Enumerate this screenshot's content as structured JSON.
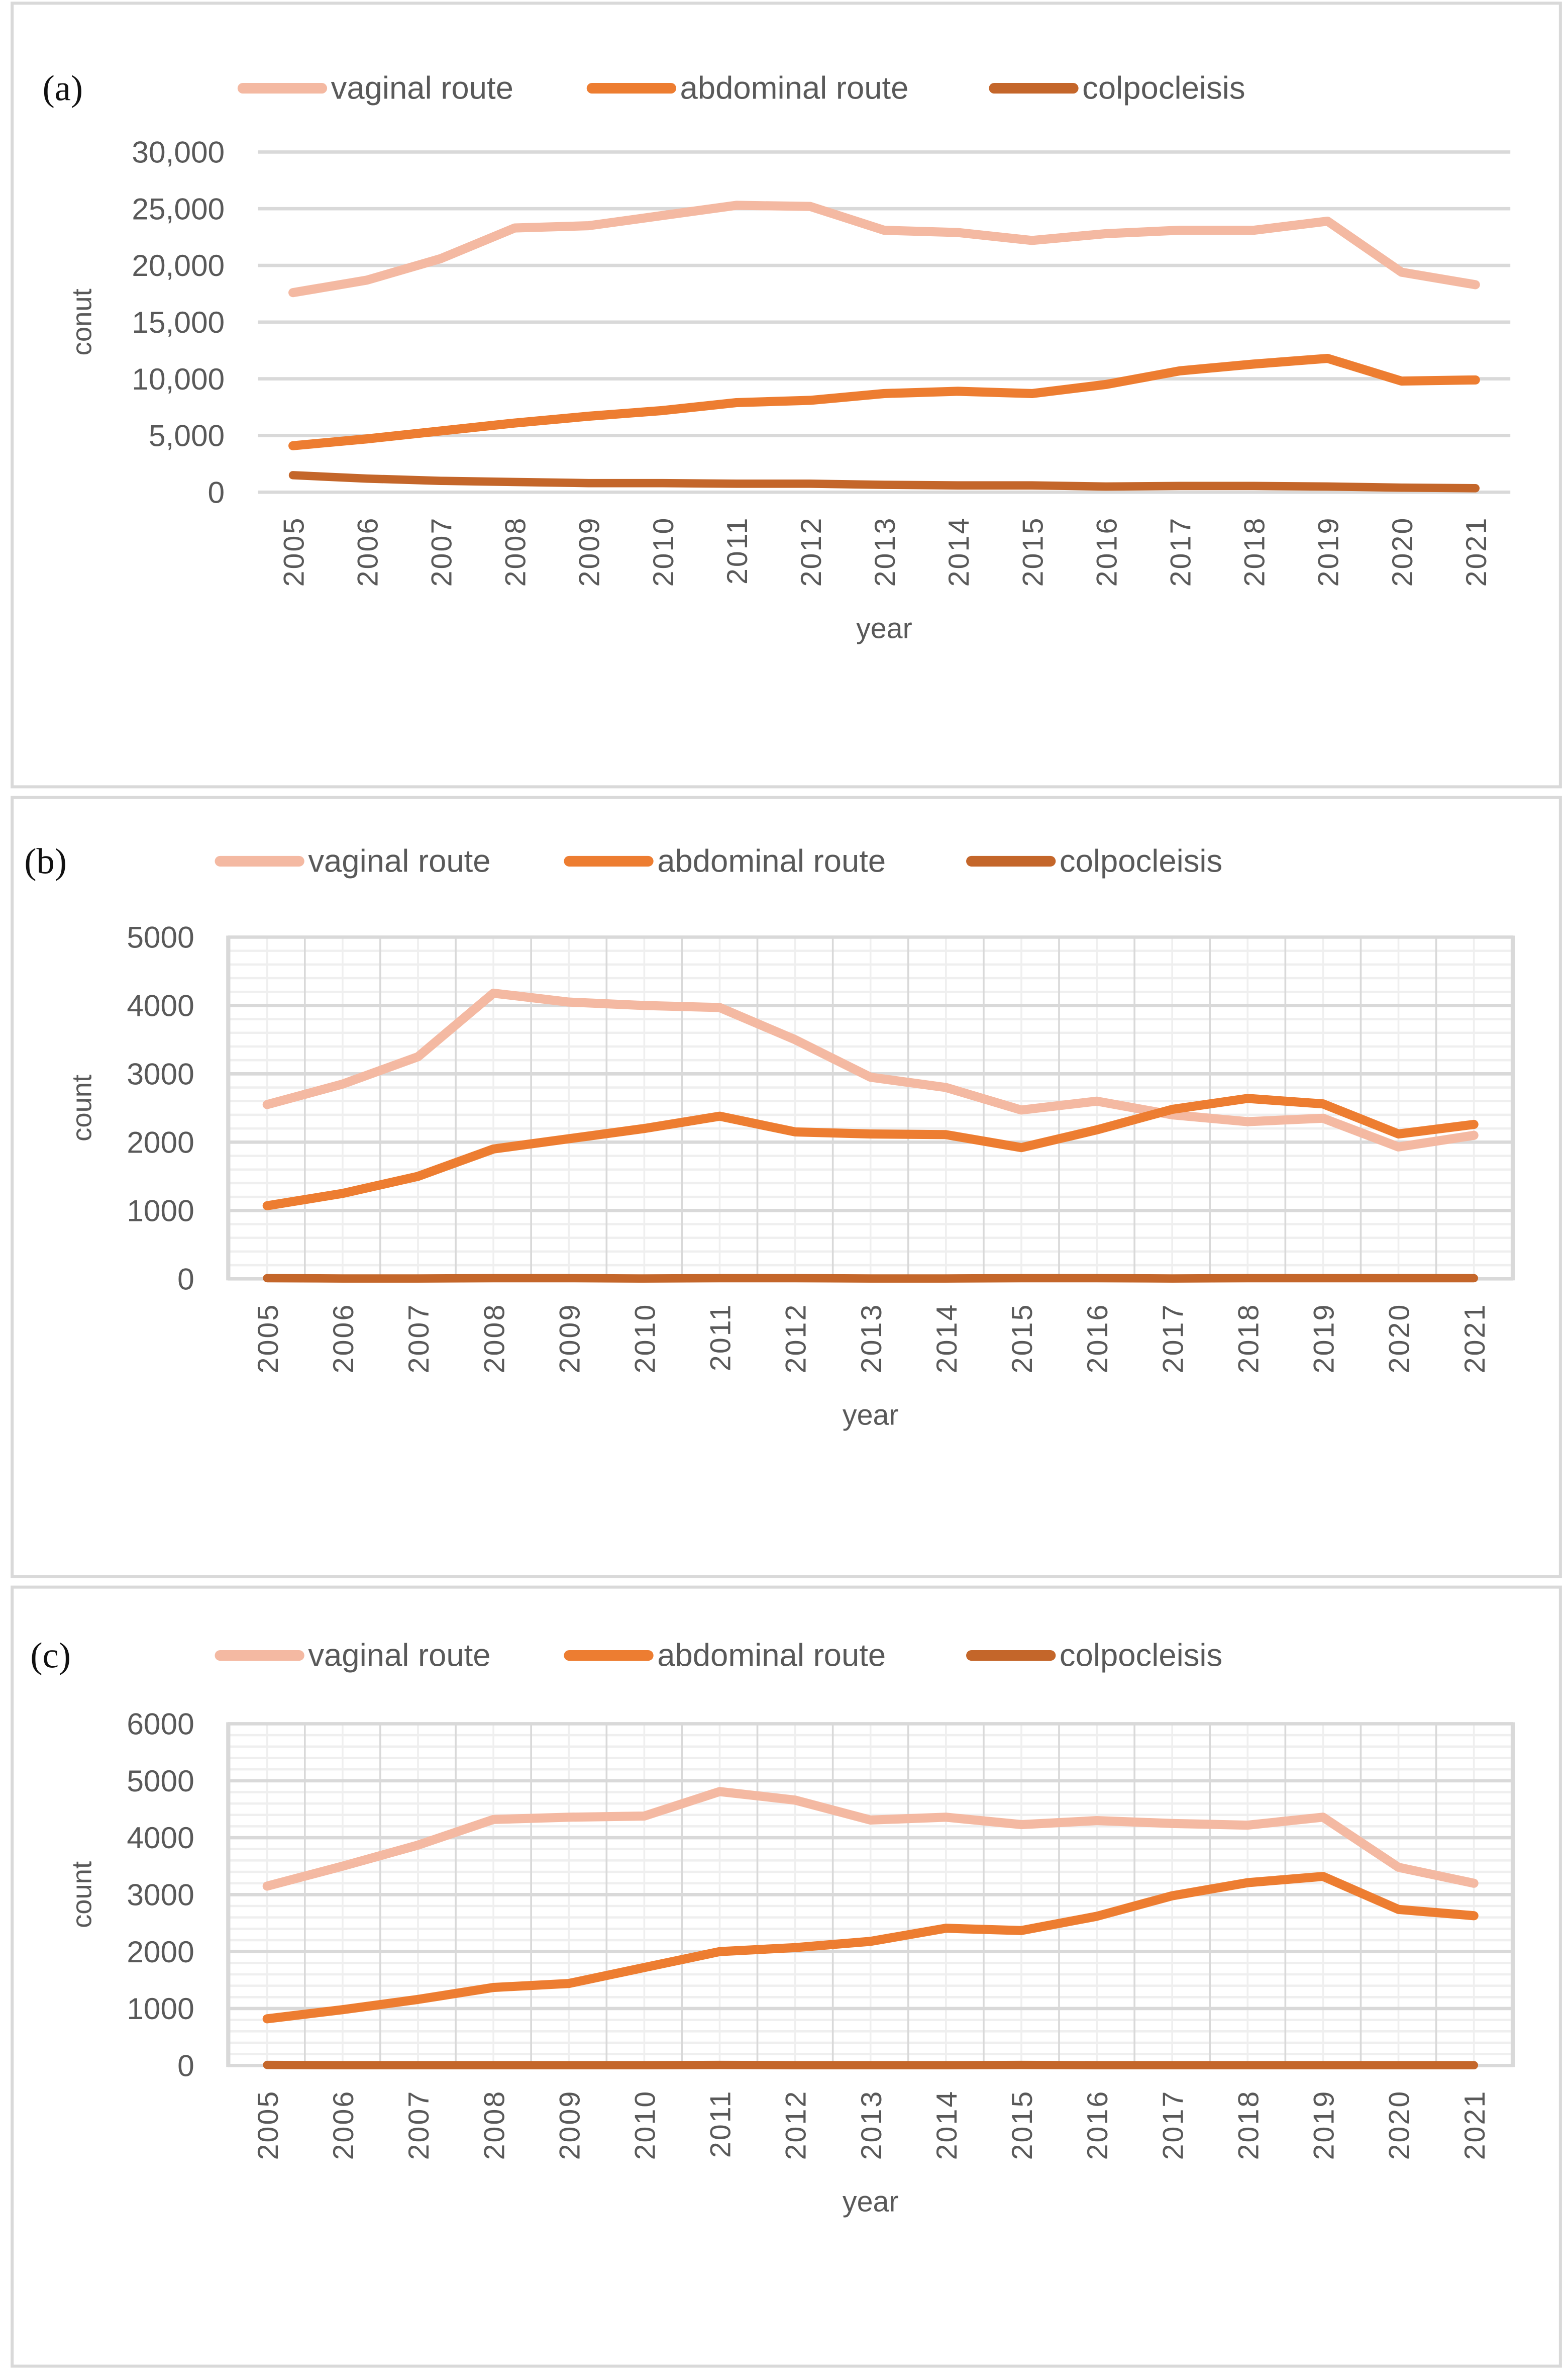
{
  "colors": {
    "vaginal": "#F4B9A2",
    "abdominal": "#ED7D31",
    "colpocleisis": "#C4662A",
    "grid": "#D9D9D9",
    "minor_grid": "#EFEFEF",
    "border": "#D9D9D9"
  },
  "chart_data": [
    {
      "type": "line",
      "panel_label": "(a)",
      "title": "",
      "xlabel": "year",
      "ylabel": "conut",
      "ylim": [
        0,
        30000
      ],
      "yticks": [
        0,
        5000,
        10000,
        15000,
        20000,
        25000,
        30000
      ],
      "ytick_labels": [
        "0",
        "5,000",
        "10,000",
        "15,000",
        "20,000",
        "25,000",
        "30,000"
      ],
      "minor_grid": false,
      "vertical_grid": false,
      "legend": "top",
      "categories": [
        "2005",
        "2006",
        "2007",
        "2008",
        "2009",
        "2010",
        "2011",
        "2012",
        "2013",
        "2014",
        "2015",
        "2016",
        "2017",
        "2018",
        "2019",
        "2020",
        "2021"
      ],
      "series": [
        {
          "name": "vaginal route",
          "key": "vaginal",
          "values": [
            17600,
            18700,
            20600,
            23300,
            23500,
            24400,
            25300,
            25200,
            23100,
            22900,
            22200,
            22800,
            23100,
            23100,
            23900,
            19400,
            18300
          ]
        },
        {
          "name": "abdominal route",
          "key": "abdominal",
          "values": [
            4100,
            4700,
            5400,
            6100,
            6700,
            7200,
            7900,
            8100,
            8700,
            8900,
            8700,
            9500,
            10700,
            11300,
            11800,
            9800,
            9900
          ]
        },
        {
          "name": "colpocleisis",
          "key": "colpocleisis",
          "values": [
            1500,
            1200,
            1000,
            900,
            800,
            800,
            750,
            750,
            650,
            600,
            600,
            500,
            550,
            550,
            500,
            400,
            350
          ]
        }
      ]
    },
    {
      "type": "line",
      "panel_label": "(b)",
      "title": "",
      "xlabel": "year",
      "ylabel": "count",
      "ylim": [
        0,
        5000
      ],
      "yticks": [
        0,
        1000,
        2000,
        3000,
        4000,
        5000
      ],
      "ytick_labels": [
        "0",
        "1000",
        "2000",
        "3000",
        "4000",
        "5000"
      ],
      "minor_grid": true,
      "vertical_grid": true,
      "legend": "top",
      "categories": [
        "2005",
        "2006",
        "2007",
        "2008",
        "2009",
        "2010",
        "2011",
        "2012",
        "2013",
        "2014",
        "2015",
        "2016",
        "2017",
        "2018",
        "2019",
        "2020",
        "2021"
      ],
      "series": [
        {
          "name": "vaginal route",
          "key": "vaginal",
          "values": [
            2550,
            2850,
            3250,
            4180,
            4050,
            4000,
            3970,
            3500,
            2950,
            2800,
            2470,
            2600,
            2400,
            2300,
            2350,
            1930,
            2100
          ]
        },
        {
          "name": "abdominal route",
          "key": "abdominal",
          "values": [
            1070,
            1250,
            1500,
            1900,
            2050,
            2200,
            2380,
            2150,
            2120,
            2110,
            1920,
            2180,
            2480,
            2640,
            2560,
            2120,
            2260
          ]
        },
        {
          "name": "colpocleisis",
          "key": "colpocleisis",
          "values": [
            10,
            5,
            5,
            10,
            10,
            5,
            10,
            10,
            5,
            5,
            10,
            10,
            5,
            10,
            10,
            10,
            10
          ]
        }
      ]
    },
    {
      "type": "line",
      "panel_label": "(c)",
      "title": "",
      "xlabel": "year",
      "ylabel": "count",
      "ylim": [
        0,
        6000
      ],
      "yticks": [
        0,
        1000,
        2000,
        3000,
        4000,
        5000,
        6000
      ],
      "ytick_labels": [
        "0",
        "1000",
        "2000",
        "3000",
        "4000",
        "5000",
        "6000"
      ],
      "minor_grid": true,
      "vertical_grid": true,
      "legend": "top",
      "categories": [
        "2005",
        "2006",
        "2007",
        "2008",
        "2009",
        "2010",
        "2011",
        "2012",
        "2013",
        "2014",
        "2015",
        "2016",
        "2017",
        "2018",
        "2019",
        "2020",
        "2021"
      ],
      "series": [
        {
          "name": "vaginal route",
          "key": "vaginal",
          "values": [
            3150,
            3500,
            3870,
            4320,
            4360,
            4380,
            4810,
            4660,
            4310,
            4360,
            4230,
            4300,
            4250,
            4220,
            4360,
            3480,
            3200
          ]
        },
        {
          "name": "abdominal route",
          "key": "abdominal",
          "values": [
            820,
            980,
            1160,
            1370,
            1440,
            1720,
            2000,
            2070,
            2180,
            2410,
            2370,
            2620,
            2980,
            3210,
            3320,
            2740,
            2630
          ]
        },
        {
          "name": "colpocleisis",
          "key": "colpocleisis",
          "values": [
            10,
            5,
            5,
            5,
            5,
            5,
            10,
            5,
            5,
            5,
            10,
            5,
            5,
            5,
            5,
            5,
            5
          ]
        }
      ]
    }
  ]
}
